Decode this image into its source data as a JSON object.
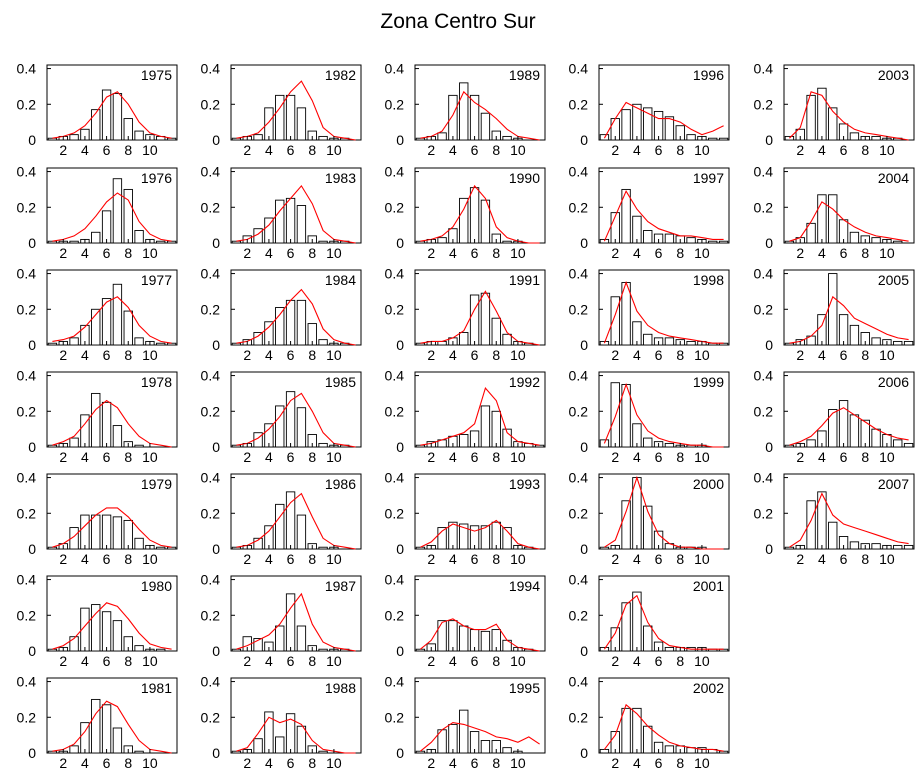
{
  "title": "Zona Centro Sur",
  "chart_data": {
    "type": "bar",
    "layout": "small multiples, 5 columns by year",
    "x": [
      1,
      2,
      3,
      4,
      5,
      6,
      7,
      8,
      9,
      10,
      11,
      12
    ],
    "x_ticks": [
      2,
      4,
      6,
      8,
      10
    ],
    "y_ticks": [
      0,
      0.2,
      0.4
    ],
    "ylim": [
      0,
      0.42
    ],
    "bar_color": "#ffffff",
    "bar_edge": "#000000",
    "line_color": "#ff0000",
    "panels": [
      {
        "year": "1975",
        "col": 0,
        "row": 0,
        "bars": [
          0.01,
          0.02,
          0.03,
          0.06,
          0.17,
          0.28,
          0.26,
          0.12,
          0.05,
          0.03,
          0.02,
          0.01
        ],
        "line": [
          0.01,
          0.02,
          0.04,
          0.08,
          0.15,
          0.24,
          0.27,
          0.2,
          0.1,
          0.04,
          0.02,
          0.01
        ]
      },
      {
        "year": "1976",
        "col": 0,
        "row": 1,
        "bars": [
          0.01,
          0.01,
          0.01,
          0.02,
          0.06,
          0.18,
          0.36,
          0.3,
          0.07,
          0.02,
          0.01,
          0.01
        ],
        "line": [
          0.01,
          0.02,
          0.04,
          0.08,
          0.15,
          0.23,
          0.28,
          0.24,
          0.12,
          0.05,
          0.02,
          0.01
        ]
      },
      {
        "year": "1977",
        "col": 0,
        "row": 2,
        "bars": [
          0.01,
          0.02,
          0.04,
          0.11,
          0.2,
          0.26,
          0.34,
          0.19,
          0.04,
          0.02,
          0.01,
          0.01
        ],
        "line": [
          0.02,
          0.03,
          0.05,
          0.1,
          0.17,
          0.24,
          0.27,
          0.21,
          0.11,
          0.05,
          0.02,
          0.01
        ]
      },
      {
        "year": "1978",
        "col": 0,
        "row": 3,
        "bars": [
          0.01,
          0.02,
          0.05,
          0.18,
          0.3,
          0.25,
          0.12,
          0.03,
          0.01,
          0.0,
          0.0,
          0.0
        ],
        "line": [
          0.01,
          0.03,
          0.06,
          0.13,
          0.21,
          0.26,
          0.22,
          0.13,
          0.06,
          0.02,
          0.01,
          0.0
        ]
      },
      {
        "year": "1979",
        "col": 0,
        "row": 4,
        "bars": [
          0.01,
          0.03,
          0.12,
          0.19,
          0.19,
          0.19,
          0.18,
          0.16,
          0.06,
          0.02,
          0.01,
          0.01
        ],
        "line": [
          0.01,
          0.03,
          0.07,
          0.13,
          0.19,
          0.23,
          0.23,
          0.18,
          0.11,
          0.05,
          0.02,
          0.01
        ]
      },
      {
        "year": "1980",
        "col": 0,
        "row": 5,
        "bars": [
          0.01,
          0.02,
          0.08,
          0.24,
          0.26,
          0.22,
          0.17,
          0.08,
          0.03,
          0.01,
          0.01,
          0.0
        ],
        "line": [
          0.01,
          0.03,
          0.07,
          0.14,
          0.21,
          0.27,
          0.25,
          0.18,
          0.1,
          0.04,
          0.02,
          0.01
        ]
      },
      {
        "year": "1981",
        "col": 0,
        "row": 6,
        "bars": [
          0.01,
          0.01,
          0.04,
          0.17,
          0.3,
          0.27,
          0.14,
          0.04,
          0.01,
          0.0,
          0.0,
          0.0
        ],
        "line": [
          0.01,
          0.02,
          0.05,
          0.12,
          0.22,
          0.29,
          0.26,
          0.16,
          0.07,
          0.02,
          0.01,
          0.0
        ]
      },
      {
        "year": "1982",
        "col": 1,
        "row": 0,
        "bars": [
          0.01,
          0.02,
          0.03,
          0.18,
          0.25,
          0.25,
          0.18,
          0.05,
          0.02,
          0.01,
          0.01,
          0.0
        ],
        "line": [
          0.01,
          0.02,
          0.04,
          0.1,
          0.18,
          0.27,
          0.33,
          0.22,
          0.07,
          0.02,
          0.01,
          0.0
        ]
      },
      {
        "year": "1983",
        "col": 1,
        "row": 1,
        "bars": [
          0.01,
          0.04,
          0.08,
          0.14,
          0.24,
          0.25,
          0.21,
          0.04,
          0.01,
          0.01,
          0.01,
          0.0
        ],
        "line": [
          0.01,
          0.02,
          0.05,
          0.1,
          0.18,
          0.25,
          0.32,
          0.22,
          0.07,
          0.02,
          0.01,
          0.0
        ]
      },
      {
        "year": "1984",
        "col": 1,
        "row": 2,
        "bars": [
          0.01,
          0.03,
          0.07,
          0.13,
          0.21,
          0.25,
          0.25,
          0.12,
          0.03,
          0.01,
          0.01,
          0.0
        ],
        "line": [
          0.01,
          0.02,
          0.05,
          0.1,
          0.17,
          0.25,
          0.31,
          0.23,
          0.09,
          0.03,
          0.01,
          0.0
        ]
      },
      {
        "year": "1985",
        "col": 1,
        "row": 3,
        "bars": [
          0.01,
          0.02,
          0.08,
          0.13,
          0.23,
          0.31,
          0.22,
          0.07,
          0.02,
          0.01,
          0.01,
          0.0
        ],
        "line": [
          0.01,
          0.02,
          0.05,
          0.1,
          0.17,
          0.26,
          0.3,
          0.2,
          0.08,
          0.02,
          0.01,
          0.0
        ]
      },
      {
        "year": "1986",
        "col": 1,
        "row": 4,
        "bars": [
          0.01,
          0.02,
          0.06,
          0.13,
          0.25,
          0.32,
          0.19,
          0.03,
          0.01,
          0.01,
          0.0,
          0.0
        ],
        "line": [
          0.01,
          0.02,
          0.05,
          0.1,
          0.18,
          0.26,
          0.31,
          0.18,
          0.06,
          0.02,
          0.01,
          0.0
        ]
      },
      {
        "year": "1987",
        "col": 1,
        "row": 5,
        "bars": [
          0.01,
          0.08,
          0.07,
          0.05,
          0.14,
          0.32,
          0.14,
          0.03,
          0.01,
          0.01,
          0.01,
          0.0
        ],
        "line": [
          0.01,
          0.03,
          0.06,
          0.09,
          0.15,
          0.24,
          0.32,
          0.15,
          0.05,
          0.02,
          0.01,
          0.0
        ]
      },
      {
        "year": "1988",
        "col": 1,
        "row": 6,
        "bars": [
          0.01,
          0.02,
          0.08,
          0.23,
          0.09,
          0.22,
          0.15,
          0.04,
          0.01,
          0.0,
          0.0,
          0.0
        ],
        "line": [
          0.01,
          0.03,
          0.11,
          0.2,
          0.17,
          0.19,
          0.16,
          0.07,
          0.02,
          0.01,
          0.0,
          0.0
        ]
      },
      {
        "year": "1989",
        "col": 2,
        "row": 0,
        "bars": [
          0.01,
          0.02,
          0.04,
          0.25,
          0.32,
          0.25,
          0.15,
          0.05,
          0.02,
          0.01,
          0.0,
          0.0
        ],
        "line": [
          0.01,
          0.02,
          0.05,
          0.14,
          0.27,
          0.21,
          0.17,
          0.12,
          0.06,
          0.02,
          0.01,
          0.0
        ]
      },
      {
        "year": "1990",
        "col": 2,
        "row": 1,
        "bars": [
          0.01,
          0.02,
          0.03,
          0.08,
          0.25,
          0.31,
          0.24,
          0.05,
          0.01,
          0.01,
          0.0,
          0.0
        ],
        "line": [
          0.01,
          0.02,
          0.04,
          0.09,
          0.19,
          0.32,
          0.25,
          0.09,
          0.03,
          0.01,
          0.0,
          0.0
        ]
      },
      {
        "year": "1991",
        "col": 2,
        "row": 2,
        "bars": [
          0.01,
          0.02,
          0.02,
          0.04,
          0.07,
          0.28,
          0.29,
          0.15,
          0.06,
          0.02,
          0.01,
          0.0
        ],
        "line": [
          0.01,
          0.02,
          0.02,
          0.04,
          0.08,
          0.2,
          0.3,
          0.19,
          0.07,
          0.02,
          0.01,
          0.0
        ]
      },
      {
        "year": "1992",
        "col": 2,
        "row": 3,
        "bars": [
          0.01,
          0.03,
          0.04,
          0.06,
          0.07,
          0.09,
          0.23,
          0.2,
          0.1,
          0.03,
          0.02,
          0.01
        ],
        "line": [
          0.01,
          0.02,
          0.04,
          0.06,
          0.08,
          0.13,
          0.33,
          0.26,
          0.08,
          0.03,
          0.02,
          0.01
        ]
      },
      {
        "year": "1993",
        "col": 2,
        "row": 4,
        "bars": [
          0.01,
          0.02,
          0.12,
          0.15,
          0.14,
          0.13,
          0.13,
          0.15,
          0.12,
          0.02,
          0.01,
          0.0
        ],
        "line": [
          0.01,
          0.04,
          0.1,
          0.14,
          0.12,
          0.1,
          0.12,
          0.16,
          0.1,
          0.03,
          0.01,
          0.0
        ]
      },
      {
        "year": "1994",
        "col": 2,
        "row": 5,
        "bars": [
          0.01,
          0.04,
          0.17,
          0.17,
          0.14,
          0.12,
          0.11,
          0.12,
          0.06,
          0.02,
          0.01,
          0.0
        ],
        "line": [
          0.01,
          0.06,
          0.16,
          0.18,
          0.14,
          0.12,
          0.12,
          0.15,
          0.06,
          0.02,
          0.01,
          0.0
        ]
      },
      {
        "year": "1995",
        "col": 2,
        "row": 6,
        "bars": [
          0.01,
          0.02,
          0.13,
          0.16,
          0.24,
          0.12,
          0.07,
          0.07,
          0.03,
          0.01,
          0.0,
          0.0
        ],
        "line": [
          0.01,
          0.06,
          0.13,
          0.17,
          0.16,
          0.14,
          0.12,
          0.09,
          0.08,
          0.06,
          0.09,
          0.05
        ]
      },
      {
        "year": "1996",
        "col": 3,
        "row": 0,
        "bars": [
          0.03,
          0.12,
          0.17,
          0.2,
          0.18,
          0.16,
          0.13,
          0.08,
          0.03,
          0.02,
          0.01,
          0.01
        ],
        "line": [
          0.01,
          0.12,
          0.21,
          0.18,
          0.15,
          0.12,
          0.12,
          0.1,
          0.06,
          0.03,
          0.05,
          0.08
        ]
      },
      {
        "year": "1997",
        "col": 3,
        "row": 1,
        "bars": [
          0.02,
          0.17,
          0.3,
          0.15,
          0.07,
          0.05,
          0.05,
          0.04,
          0.03,
          0.02,
          0.01,
          0.01
        ],
        "line": [
          0.01,
          0.15,
          0.29,
          0.19,
          0.12,
          0.08,
          0.06,
          0.04,
          0.04,
          0.03,
          0.02,
          0.02
        ]
      },
      {
        "year": "1998",
        "col": 3,
        "row": 2,
        "bars": [
          0.02,
          0.27,
          0.35,
          0.13,
          0.06,
          0.04,
          0.04,
          0.03,
          0.02,
          0.02,
          0.01,
          0.01
        ],
        "line": [
          0.01,
          0.17,
          0.35,
          0.19,
          0.11,
          0.07,
          0.05,
          0.04,
          0.03,
          0.02,
          0.01,
          0.01
        ]
      },
      {
        "year": "1999",
        "col": 3,
        "row": 3,
        "bars": [
          0.04,
          0.36,
          0.35,
          0.13,
          0.05,
          0.03,
          0.02,
          0.01,
          0.01,
          0.01,
          0.0,
          0.0
        ],
        "line": [
          0.02,
          0.17,
          0.35,
          0.18,
          0.09,
          0.05,
          0.03,
          0.02,
          0.01,
          0.01,
          0.0,
          0.0
        ]
      },
      {
        "year": "2000",
        "col": 3,
        "row": 4,
        "bars": [
          0.01,
          0.02,
          0.27,
          0.4,
          0.24,
          0.1,
          0.03,
          0.01,
          0.01,
          0.01,
          0.0,
          0.0
        ],
        "line": [
          0.01,
          0.05,
          0.21,
          0.4,
          0.21,
          0.08,
          0.03,
          0.01,
          0.01,
          0.0,
          0.0,
          0.0
        ]
      },
      {
        "year": "2001",
        "col": 3,
        "row": 5,
        "bars": [
          0.02,
          0.13,
          0.27,
          0.33,
          0.14,
          0.05,
          0.02,
          0.02,
          0.02,
          0.02,
          0.01,
          0.01
        ],
        "line": [
          0.01,
          0.1,
          0.26,
          0.31,
          0.16,
          0.07,
          0.03,
          0.02,
          0.01,
          0.01,
          0.01,
          0.01
        ]
      },
      {
        "year": "2002",
        "col": 3,
        "row": 6,
        "bars": [
          0.02,
          0.12,
          0.25,
          0.25,
          0.15,
          0.06,
          0.04,
          0.04,
          0.03,
          0.03,
          0.02,
          0.01
        ],
        "line": [
          0.02,
          0.1,
          0.27,
          0.22,
          0.15,
          0.1,
          0.06,
          0.04,
          0.03,
          0.02,
          0.02,
          0.01
        ]
      },
      {
        "year": "2003",
        "col": 4,
        "row": 0,
        "bars": [
          0.02,
          0.06,
          0.25,
          0.29,
          0.18,
          0.09,
          0.04,
          0.02,
          0.02,
          0.01,
          0.01,
          0.0
        ],
        "line": [
          0.01,
          0.07,
          0.27,
          0.25,
          0.16,
          0.1,
          0.06,
          0.04,
          0.03,
          0.02,
          0.01,
          0.0
        ]
      },
      {
        "year": "2004",
        "col": 4,
        "row": 1,
        "bars": [
          0.01,
          0.03,
          0.11,
          0.27,
          0.27,
          0.13,
          0.06,
          0.04,
          0.03,
          0.02,
          0.01,
          0.0
        ],
        "line": [
          0.01,
          0.03,
          0.12,
          0.23,
          0.19,
          0.13,
          0.09,
          0.06,
          0.04,
          0.03,
          0.02,
          0.01
        ]
      },
      {
        "year": "2005",
        "col": 4,
        "row": 2,
        "bars": [
          0.01,
          0.03,
          0.05,
          0.17,
          0.4,
          0.17,
          0.11,
          0.07,
          0.04,
          0.03,
          0.02,
          0.02
        ],
        "line": [
          0.01,
          0.02,
          0.05,
          0.11,
          0.27,
          0.22,
          0.15,
          0.12,
          0.09,
          0.06,
          0.04,
          0.03
        ]
      },
      {
        "year": "2006",
        "col": 4,
        "row": 3,
        "bars": [
          0.01,
          0.02,
          0.04,
          0.09,
          0.21,
          0.26,
          0.18,
          0.15,
          0.1,
          0.07,
          0.04,
          0.02
        ],
        "line": [
          0.01,
          0.03,
          0.06,
          0.12,
          0.19,
          0.22,
          0.18,
          0.14,
          0.1,
          0.07,
          0.05,
          0.04
        ]
      },
      {
        "year": "2007",
        "col": 4,
        "row": 4,
        "bars": [
          0.01,
          0.02,
          0.27,
          0.32,
          0.15,
          0.07,
          0.04,
          0.03,
          0.03,
          0.02,
          0.02,
          0.02
        ],
        "line": [
          0.01,
          0.05,
          0.16,
          0.31,
          0.19,
          0.14,
          0.12,
          0.1,
          0.08,
          0.06,
          0.04,
          0.03
        ]
      }
    ]
  }
}
